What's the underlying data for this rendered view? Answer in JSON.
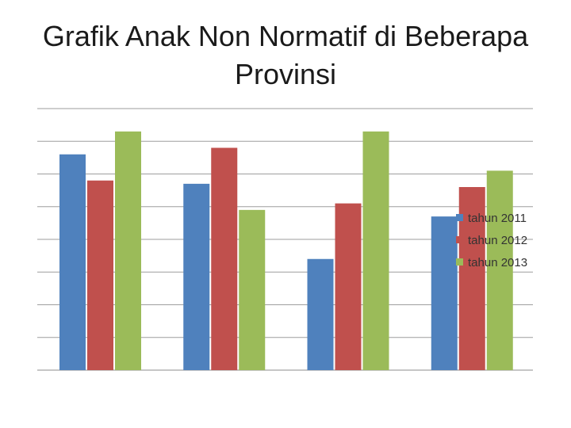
{
  "chart_data": {
    "type": "bar",
    "title": "Grafik Anak Non Normatif di Beberapa Provinsi",
    "categories": [
      "",
      "",
      "",
      ""
    ],
    "series": [
      {
        "name": "tahun 2011",
        "color": "#4F81BD",
        "values": [
          6.6,
          5.7,
          3.4,
          4.7
        ]
      },
      {
        "name": "tahun 2012",
        "color": "#C0504D",
        "values": [
          5.8,
          6.8,
          5.1,
          5.6
        ]
      },
      {
        "name": "tahun 2013",
        "color": "#9BBB59",
        "values": [
          7.3,
          4.9,
          7.3,
          6.1
        ]
      }
    ],
    "ylim": [
      0,
      8
    ],
    "y_gridlines": 8,
    "show_tick_labels": false,
    "grid": true,
    "legend_position": "right"
  }
}
